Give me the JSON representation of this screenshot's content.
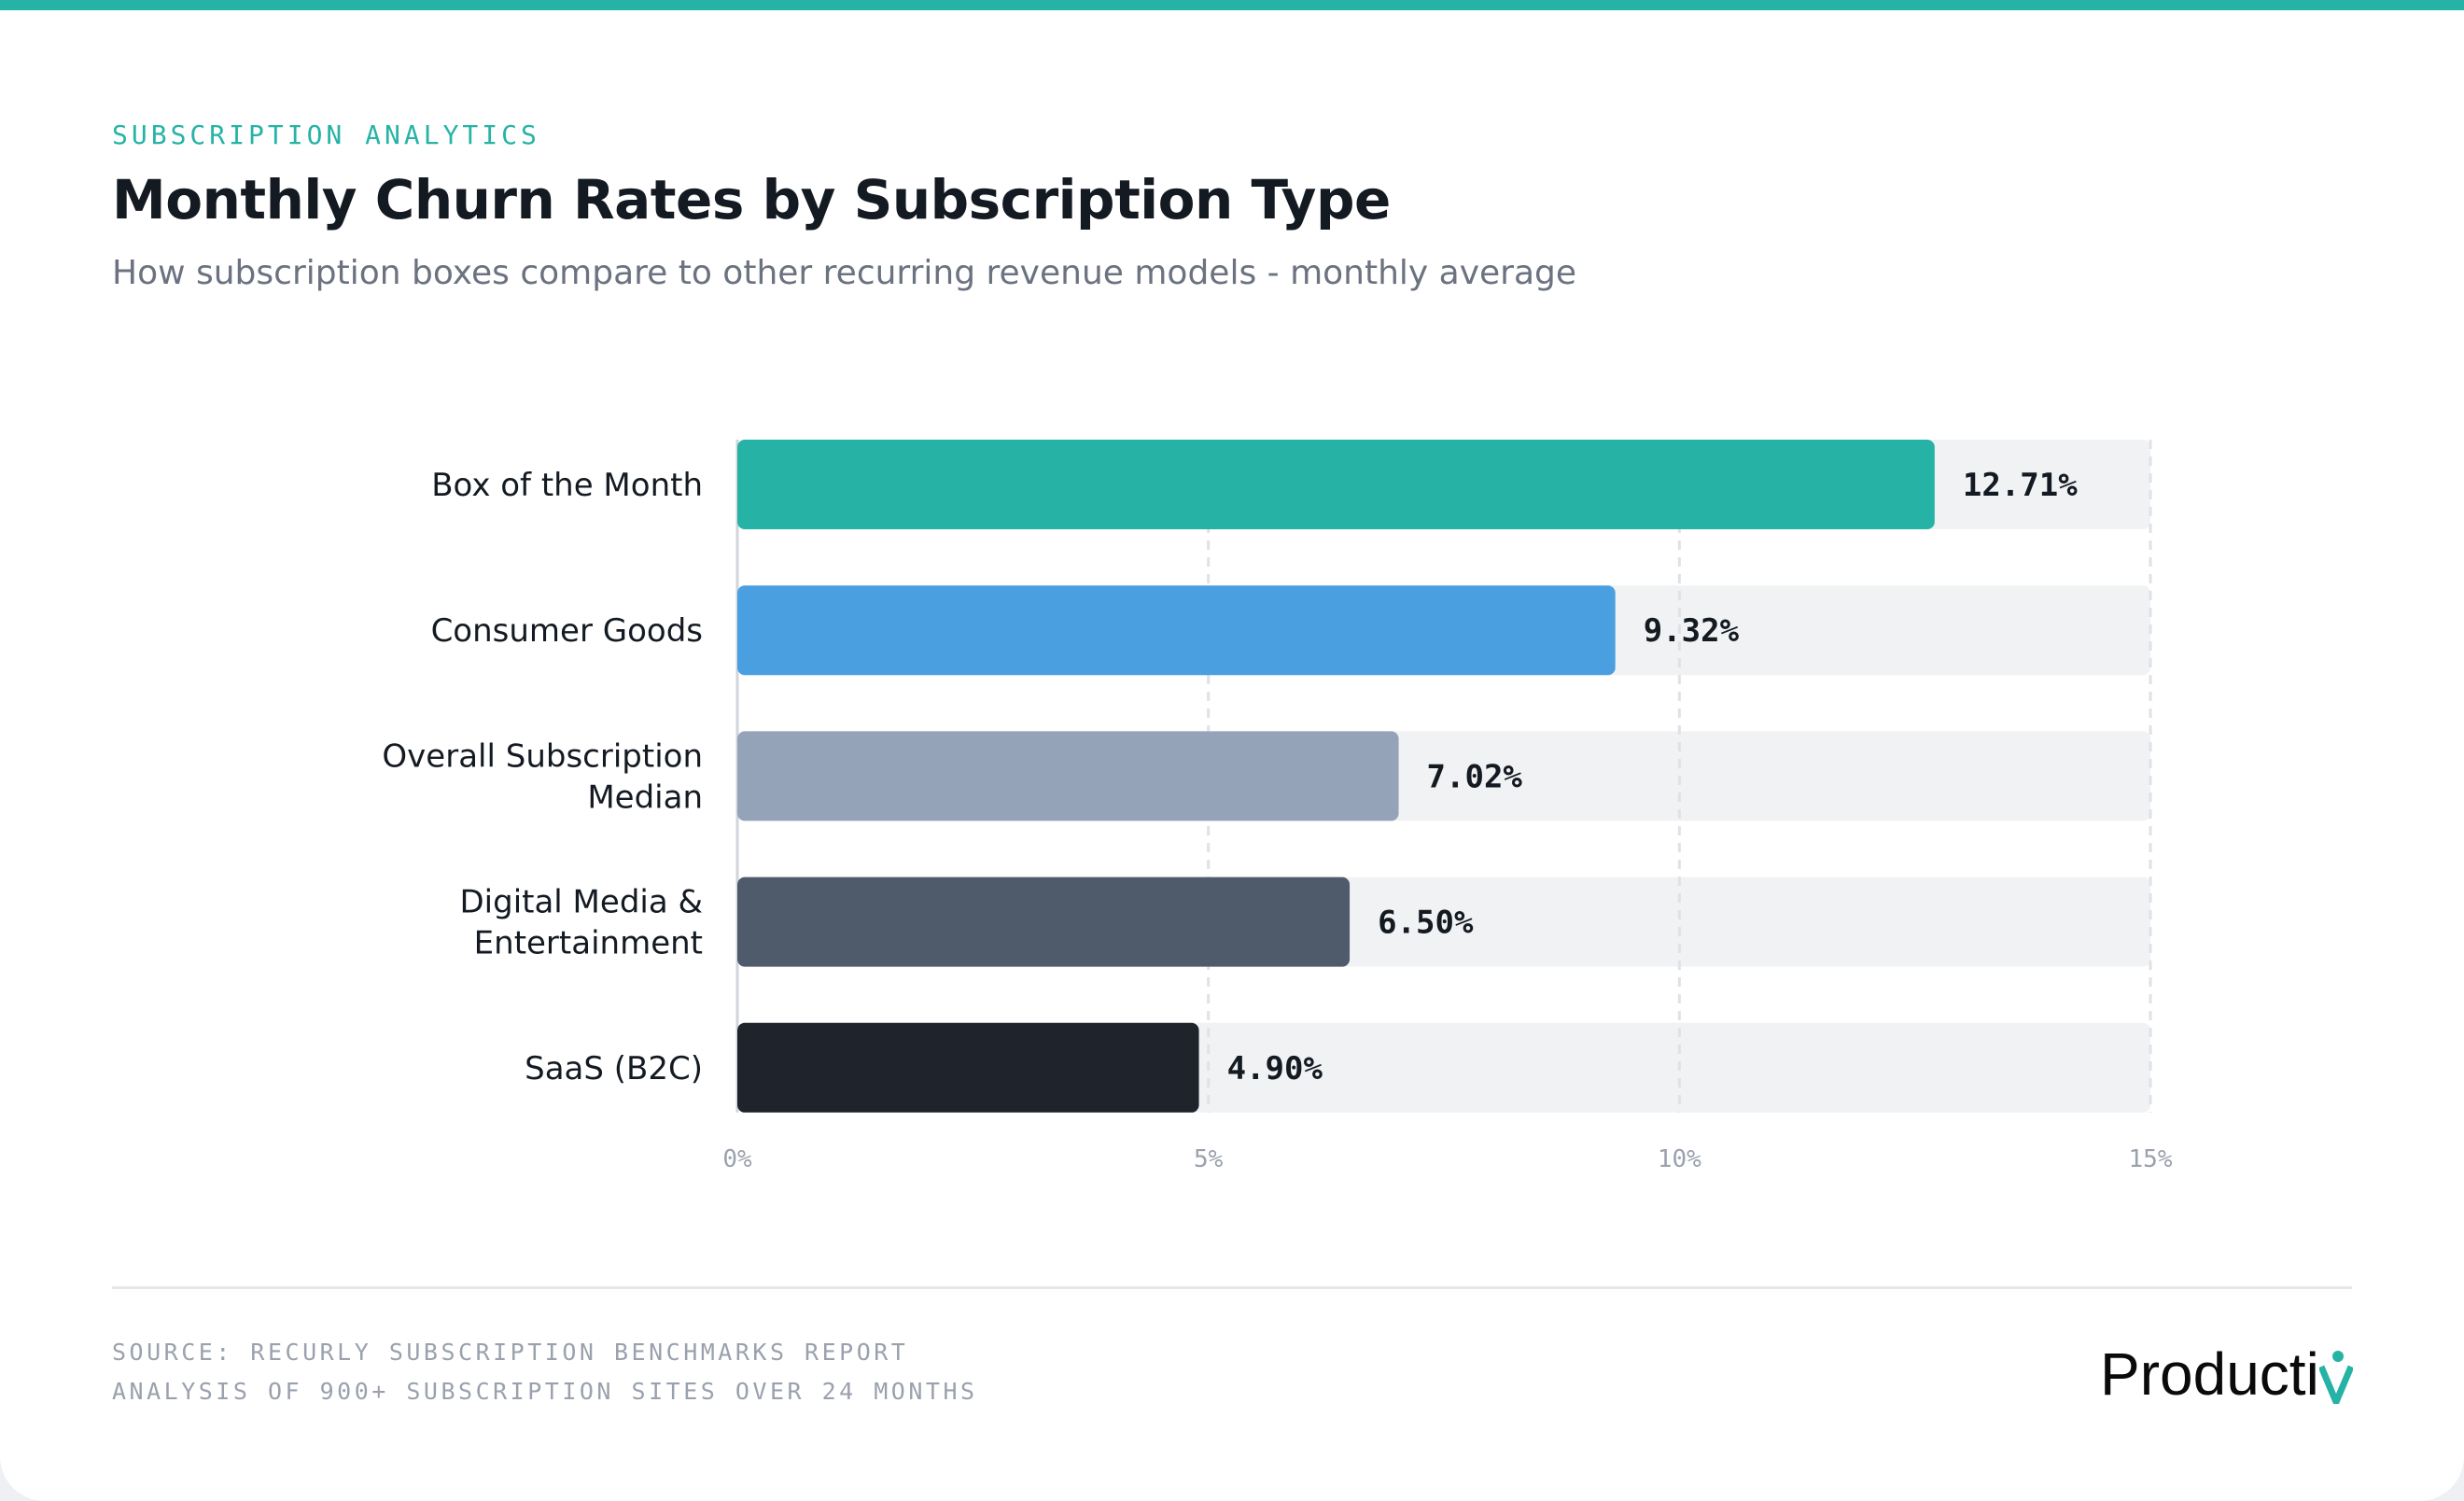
{
  "header": {
    "eyebrow": "SUBSCRIPTION ANALYTICS",
    "title": "Monthly Churn Rates by Subscription Type",
    "subtitle": "How subscription boxes compare to other recurring revenue models - monthly average"
  },
  "chart_data": {
    "type": "bar",
    "orientation": "horizontal",
    "categories": [
      [
        "Box of the Month"
      ],
      [
        "Consumer Goods"
      ],
      [
        "Overall Subscription",
        "Median"
      ],
      [
        "Digital Media &",
        "Entertainment"
      ],
      [
        "SaaS (B2C)"
      ]
    ],
    "values": [
      12.71,
      9.32,
      7.02,
      6.5,
      4.9
    ],
    "value_labels": [
      "12.71%",
      "9.32%",
      "7.02%",
      "6.50%",
      "4.90%"
    ],
    "colors": [
      "#26b3a6",
      "#4a9fe0",
      "#94a3b8",
      "#4f5b6b",
      "#1f232b"
    ],
    "xlim": [
      0,
      15
    ],
    "xticks": [
      0,
      5,
      10,
      15
    ],
    "xtick_labels": [
      "0%",
      "5%",
      "10%",
      "15%"
    ],
    "grid": true,
    "track_color": "#f1f2f4"
  },
  "footer": {
    "source_line1": "SOURCE: RECURLY SUBSCRIPTION BENCHMARKS REPORT",
    "source_line2": "ANALYSIS OF 900+ SUBSCRIPTION SITES OVER 24 MONTHS",
    "logo_text": "Productiv",
    "logo_accent": "#26b3a6"
  }
}
